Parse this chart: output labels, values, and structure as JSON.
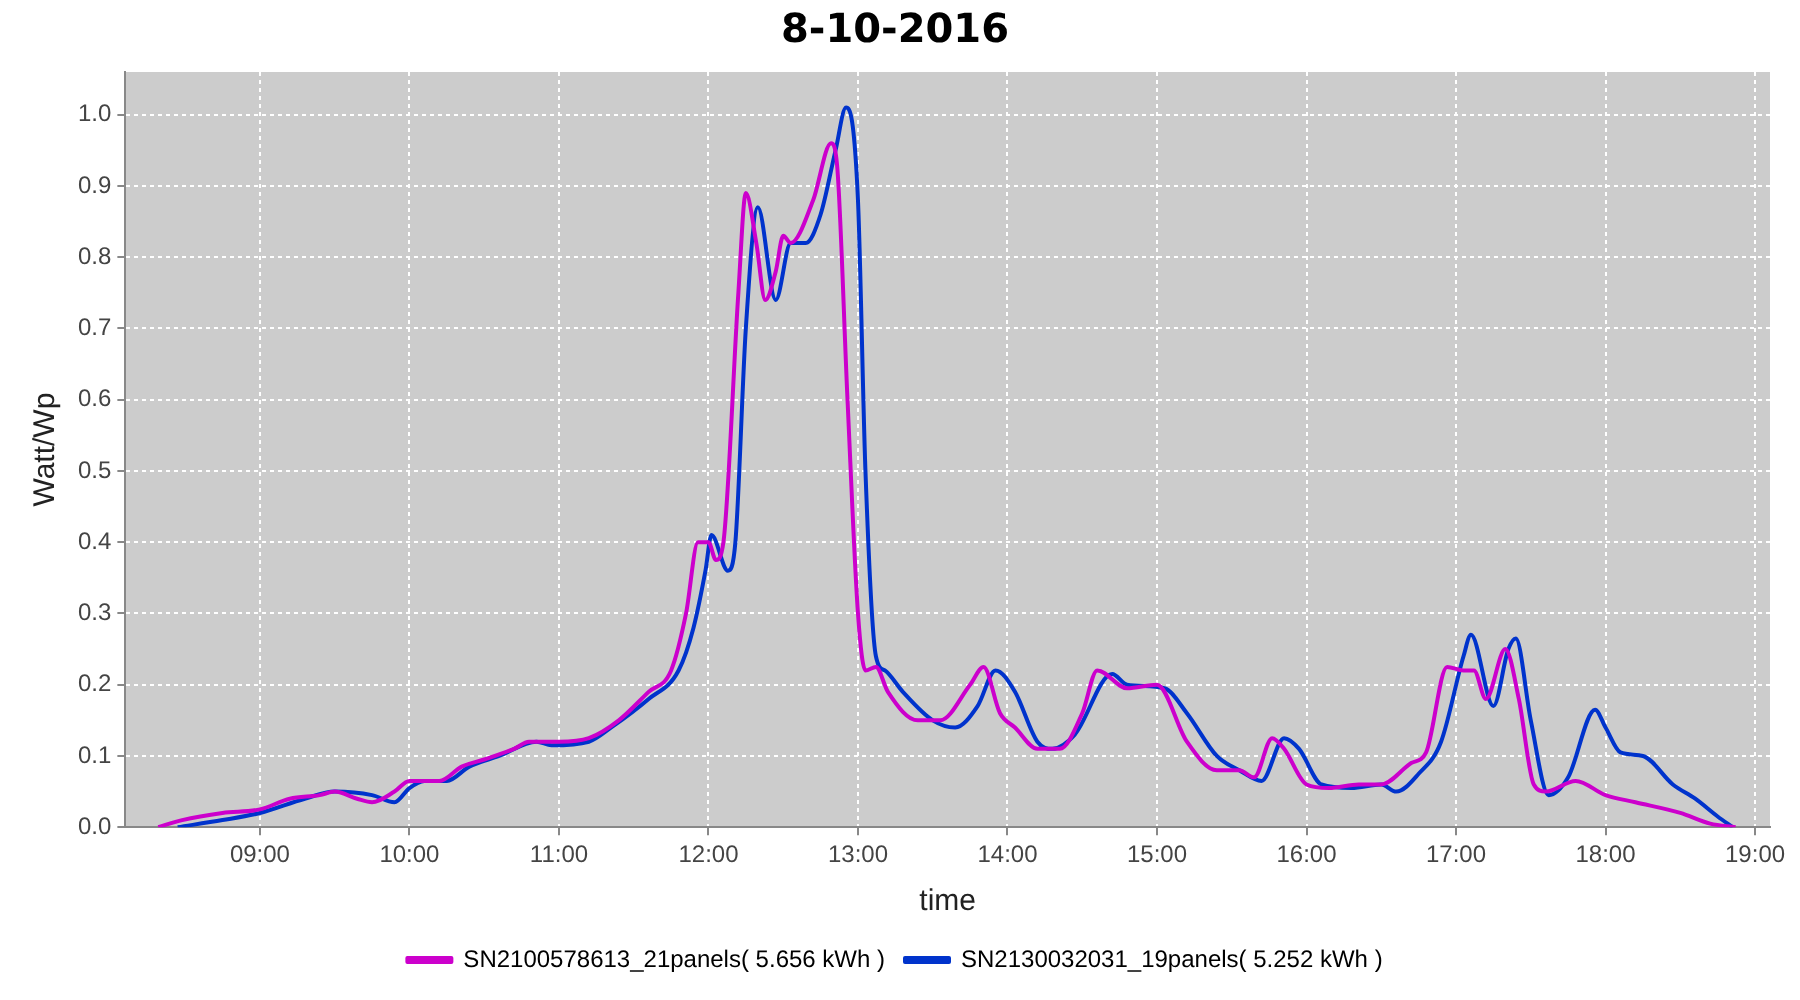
{
  "chart_data": {
    "type": "line",
    "title": "8-10-2016",
    "xlabel": "time",
    "ylabel": "Watt/Wp",
    "xlim": [
      8.1,
      19.1
    ],
    "xticks": [
      {
        "value": 9,
        "label": "09:00"
      },
      {
        "value": 10,
        "label": "10:00"
      },
      {
        "value": 11,
        "label": "11:00"
      },
      {
        "value": 12,
        "label": "12:00"
      },
      {
        "value": 13,
        "label": "13:00"
      },
      {
        "value": 14,
        "label": "14:00"
      },
      {
        "value": 15,
        "label": "15:00"
      },
      {
        "value": 16,
        "label": "16:00"
      },
      {
        "value": 17,
        "label": "17:00"
      },
      {
        "value": 18,
        "label": "18:00"
      },
      {
        "value": 19,
        "label": "19:00"
      }
    ],
    "ylim": [
      0,
      1.06
    ],
    "yticks": [
      {
        "value": 0,
        "label": "0.0"
      },
      {
        "value": 0.1,
        "label": "0.1"
      },
      {
        "value": 0.2,
        "label": "0.2"
      },
      {
        "value": 0.3,
        "label": "0.3"
      },
      {
        "value": 0.4,
        "label": "0.4"
      },
      {
        "value": 0.5,
        "label": "0.5"
      },
      {
        "value": 0.6,
        "label": "0.6"
      },
      {
        "value": 0.7,
        "label": "0.7"
      },
      {
        "value": 0.8,
        "label": "0.8"
      },
      {
        "value": 0.9,
        "label": "0.9"
      },
      {
        "value": 1,
        "label": "1.0"
      }
    ],
    "grid": true,
    "legend": "bottom",
    "line_style": "solid",
    "series": [
      {
        "name": "SN2100578613_21panels( 5.656 kWh )",
        "color": "#cc00cc",
        "x": [
          8.32,
          8.48,
          8.75,
          9.0,
          9.2,
          9.4,
          9.5,
          9.65,
          9.75,
          9.9,
          10.0,
          10.2,
          10.35,
          10.5,
          10.7,
          10.8,
          11.0,
          11.2,
          11.4,
          11.6,
          11.75,
          11.85,
          11.93,
          12.0,
          12.05,
          12.1,
          12.2,
          12.25,
          12.32,
          12.38,
          12.45,
          12.5,
          12.55,
          12.7,
          12.82,
          12.86,
          12.93,
          13.0,
          13.05,
          13.12,
          13.2,
          13.4,
          13.55,
          13.75,
          13.84,
          13.95,
          14.05,
          14.2,
          14.35,
          14.5,
          14.6,
          14.8,
          15.0,
          15.2,
          15.4,
          15.55,
          15.65,
          15.77,
          15.85,
          16.0,
          16.15,
          16.35,
          16.5,
          16.7,
          16.8,
          16.94,
          17.05,
          17.12,
          17.2,
          17.33,
          17.42,
          17.52,
          17.6,
          17.8,
          18.0,
          18.2,
          18.5,
          18.7,
          18.87
        ],
        "values": [
          0,
          0.01,
          0.02,
          0.025,
          0.04,
          0.045,
          0.05,
          0.04,
          0.035,
          0.05,
          0.065,
          0.065,
          0.085,
          0.095,
          0.11,
          0.12,
          0.12,
          0.125,
          0.15,
          0.19,
          0.22,
          0.3,
          0.4,
          0.4,
          0.375,
          0.4,
          0.75,
          0.89,
          0.82,
          0.74,
          0.78,
          0.83,
          0.82,
          0.88,
          0.96,
          0.93,
          0.6,
          0.3,
          0.22,
          0.225,
          0.19,
          0.15,
          0.15,
          0.2,
          0.225,
          0.16,
          0.14,
          0.11,
          0.11,
          0.16,
          0.22,
          0.195,
          0.2,
          0.12,
          0.08,
          0.08,
          0.07,
          0.125,
          0.11,
          0.06,
          0.055,
          0.06,
          0.06,
          0.09,
          0.105,
          0.225,
          0.22,
          0.22,
          0.18,
          0.25,
          0.18,
          0.06,
          0.05,
          0.065,
          0.045,
          0.035,
          0.02,
          0.005,
          0
        ]
      },
      {
        "name": "SN2130032031_19panels( 5.252 kWh )",
        "color": "#0033cc",
        "x": [
          8.45,
          8.75,
          9.0,
          9.3,
          9.5,
          9.75,
          9.9,
          10.0,
          10.1,
          10.25,
          10.4,
          10.6,
          10.85,
          10.95,
          11.2,
          11.35,
          11.6,
          11.8,
          11.9,
          11.98,
          12.02,
          12.13,
          12.18,
          12.25,
          12.33,
          12.45,
          12.55,
          12.65,
          12.75,
          12.85,
          12.92,
          13.0,
          13.05,
          13.12,
          13.18,
          13.3,
          13.5,
          13.65,
          13.8,
          13.92,
          14.05,
          14.2,
          14.3,
          14.45,
          14.7,
          14.8,
          15.05,
          15.2,
          15.4,
          15.55,
          15.7,
          15.85,
          15.95,
          16.1,
          16.3,
          16.5,
          16.6,
          16.75,
          16.9,
          17.05,
          17.1,
          17.25,
          17.35,
          17.4,
          17.5,
          17.62,
          17.75,
          17.93,
          18.0,
          18.1,
          18.25,
          18.45,
          18.6,
          18.75,
          18.85
        ],
        "values": [
          0,
          0.01,
          0.02,
          0.04,
          0.05,
          0.045,
          0.035,
          0.055,
          0.065,
          0.065,
          0.085,
          0.1,
          0.12,
          0.115,
          0.12,
          0.14,
          0.18,
          0.22,
          0.28,
          0.36,
          0.41,
          0.36,
          0.4,
          0.7,
          0.87,
          0.74,
          0.82,
          0.82,
          0.86,
          0.95,
          1.01,
          0.88,
          0.5,
          0.24,
          0.22,
          0.19,
          0.15,
          0.14,
          0.17,
          0.22,
          0.19,
          0.12,
          0.11,
          0.13,
          0.215,
          0.2,
          0.195,
          0.16,
          0.1,
          0.08,
          0.065,
          0.125,
          0.11,
          0.06,
          0.055,
          0.06,
          0.05,
          0.075,
          0.12,
          0.24,
          0.27,
          0.17,
          0.25,
          0.265,
          0.15,
          0.045,
          0.07,
          0.165,
          0.14,
          0.105,
          0.1,
          0.06,
          0.04,
          0.015,
          0
        ]
      }
    ]
  }
}
